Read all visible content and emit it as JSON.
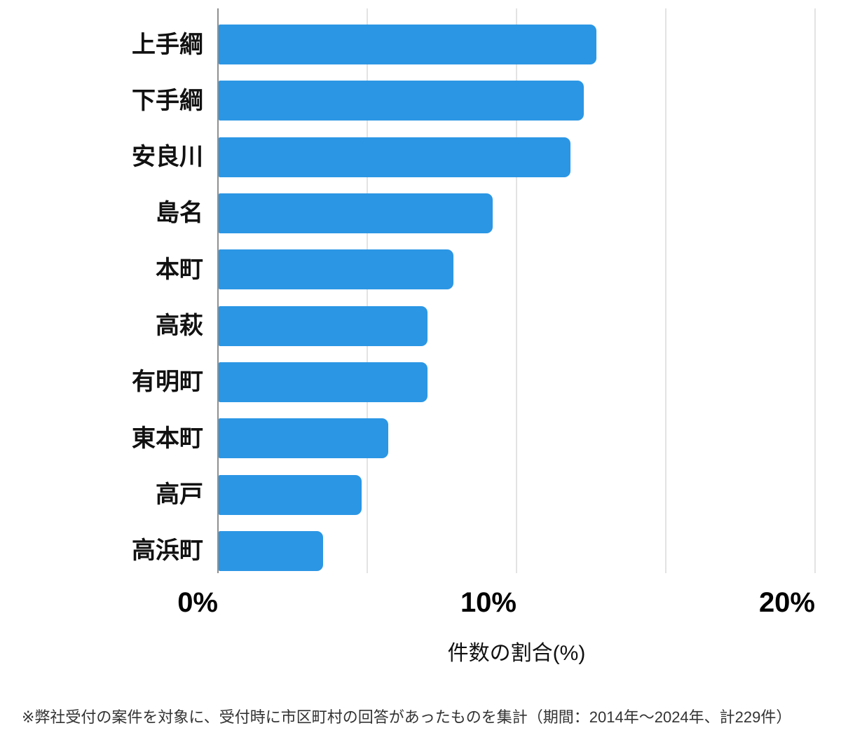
{
  "chart_data": {
    "type": "bar",
    "orientation": "horizontal",
    "categories": [
      "上手綱",
      "下手綱",
      "安良川",
      "島名",
      "本町",
      "高萩",
      "有明町",
      "東本町",
      "高戸",
      "高浜町"
    ],
    "values": [
      12.66,
      12.23,
      11.79,
      9.17,
      7.86,
      6.99,
      6.99,
      5.68,
      4.8,
      3.49
    ],
    "xlabel": "件数の割合(%)",
    "x_tick_labels": [
      "0%",
      "10%",
      "20%"
    ],
    "x_tick_values": [
      0,
      10,
      20
    ],
    "gridline_values": [
      0,
      5,
      10,
      15,
      20
    ],
    "xlim": [
      0,
      20
    ],
    "grid": "vertical-on",
    "legend": "none",
    "bar_color": "#2b96e4",
    "footnote": "※弊社受付の案件を対象に、受付時に市区町村の回答があったものを集計（期間：2014年～2024年、計229件）"
  }
}
